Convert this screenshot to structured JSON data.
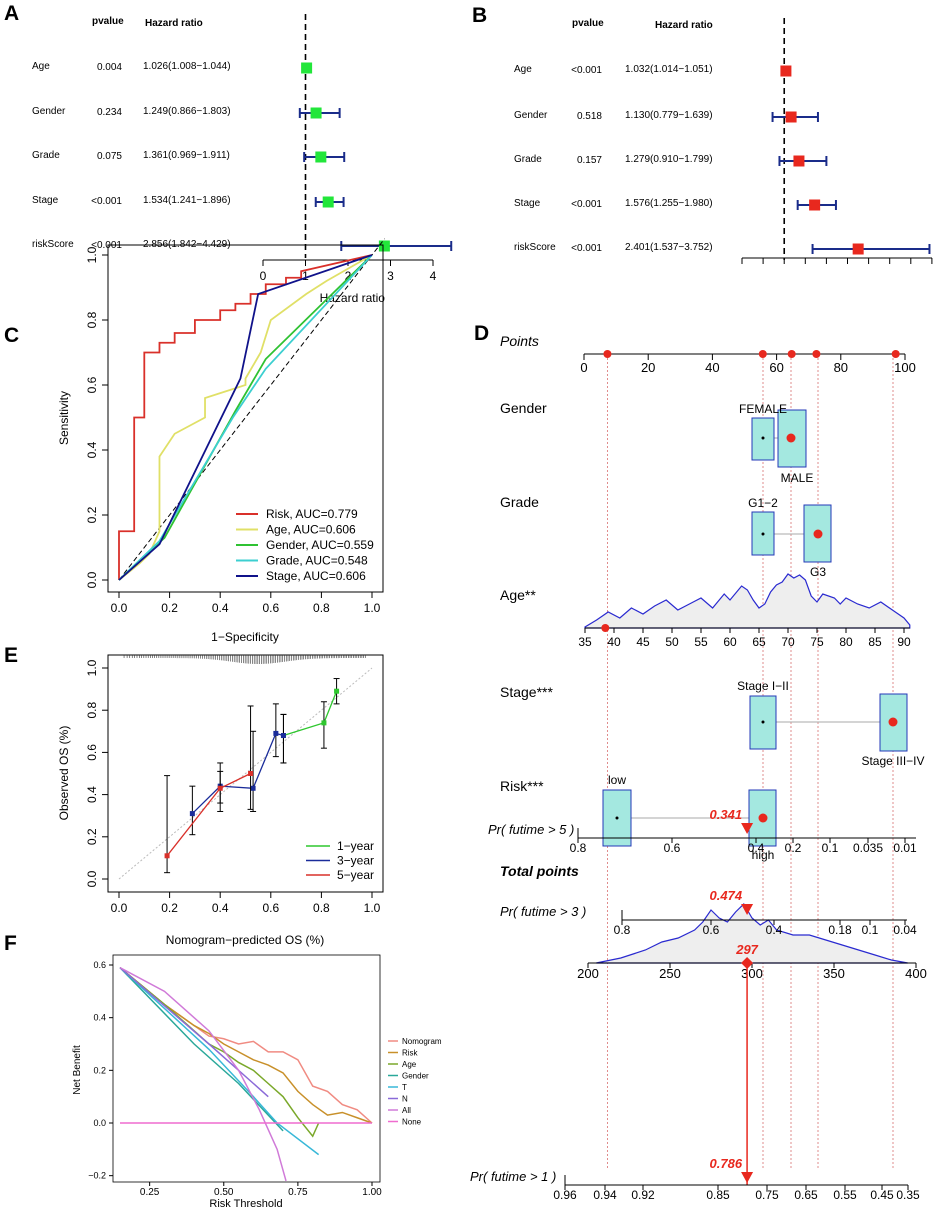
{
  "panels": {
    "a": "A",
    "b": "B",
    "c": "C",
    "d": "D",
    "e": "E",
    "f": "F"
  },
  "forest_header": {
    "pvalue": "pvalue",
    "hr": "Hazard ratio"
  },
  "chart_data": [
    {
      "id": "A",
      "type": "forest",
      "marker_color": "#22e63a",
      "ci_color": "#1a2c8a",
      "rows": [
        {
          "label": "Age",
          "pvalue": "0.004",
          "hr_text": "1.026(1.008−1.044)",
          "hr": 1.026,
          "lo": 1.008,
          "hi": 1.044
        },
        {
          "label": "Gender",
          "pvalue": "0.234",
          "hr_text": "1.249(0.866−1.803)",
          "hr": 1.249,
          "lo": 0.866,
          "hi": 1.803
        },
        {
          "label": "Grade",
          "pvalue": "0.075",
          "hr_text": "1.361(0.969−1.911)",
          "hr": 1.361,
          "lo": 0.969,
          "hi": 1.911
        },
        {
          "label": "Stage",
          "pvalue": "<0.001",
          "hr_text": "1.534(1.241−1.896)",
          "hr": 1.534,
          "lo": 1.241,
          "hi": 1.896
        },
        {
          "label": "riskScore",
          "pvalue": "<0.001",
          "hr_text": "2.856(1.842−4.429)",
          "hr": 2.856,
          "lo": 1.842,
          "hi": 4.429
        }
      ],
      "xlim": [
        0,
        4.4
      ],
      "xticks": [
        "0",
        "1",
        "2",
        "3",
        "4"
      ],
      "xlabel": "Hazard ratio"
    },
    {
      "id": "B",
      "type": "forest",
      "marker_color": "#e8281e",
      "ci_color": "#1a2c8a",
      "rows": [
        {
          "label": "Age",
          "pvalue": "<0.001",
          "hr_text": "1.032(1.014−1.051)",
          "hr": 1.032,
          "lo": 1.014,
          "hi": 1.051
        },
        {
          "label": "Gender",
          "pvalue": "0.518",
          "hr_text": "1.130(0.779−1.639)",
          "hr": 1.13,
          "lo": 0.779,
          "hi": 1.639
        },
        {
          "label": "Grade",
          "pvalue": "0.157",
          "hr_text": "1.279(0.910−1.799)",
          "hr": 1.279,
          "lo": 0.91,
          "hi": 1.799
        },
        {
          "label": "Stage",
          "pvalue": "<0.001",
          "hr_text": "1.576(1.255−1.980)",
          "hr": 1.576,
          "lo": 1.255,
          "hi": 1.98
        },
        {
          "label": "riskScore",
          "pvalue": "<0.001",
          "hr_text": "2.401(1.537−3.752)",
          "hr": 2.401,
          "lo": 1.537,
          "hi": 3.752
        }
      ],
      "xlim": [
        0.2,
        3.8
      ]
    },
    {
      "id": "C",
      "type": "line",
      "title": "",
      "xlabel": "1−Specificity",
      "ylabel": "Sensitivity",
      "xticks": [
        "0.0",
        "0.2",
        "0.4",
        "0.6",
        "0.8",
        "1.0"
      ],
      "yticks": [
        "0.0",
        "0.2",
        "0.4",
        "0.6",
        "0.8",
        "1.0"
      ],
      "series": [
        {
          "name": "Risk, AUC=0.779",
          "color": "#d9302a",
          "x": [
            0,
            0,
            0.02,
            0.06,
            0.06,
            0.1,
            0.1,
            0.16,
            0.16,
            0.22,
            0.22,
            0.3,
            0.3,
            0.4,
            0.4,
            0.46,
            0.46,
            0.52,
            0.52,
            0.58,
            0.58,
            0.66,
            0.66,
            0.72,
            0.72,
            1
          ],
          "y": [
            0,
            0.15,
            0.15,
            0.15,
            0.5,
            0.5,
            0.7,
            0.7,
            0.73,
            0.73,
            0.76,
            0.76,
            0.8,
            0.8,
            0.83,
            0.83,
            0.85,
            0.85,
            0.88,
            0.88,
            0.91,
            0.91,
            0.93,
            0.93,
            0.95,
            1
          ]
        },
        {
          "name": "Age, AUC=0.606",
          "color": "#e0e067",
          "x": [
            0,
            0.08,
            0.12,
            0.16,
            0.16,
            0.22,
            0.34,
            0.34,
            0.42,
            0.5,
            0.5,
            0.56,
            0.6,
            0.74,
            0.82,
            1
          ],
          "y": [
            0,
            0.05,
            0.08,
            0.15,
            0.38,
            0.45,
            0.5,
            0.56,
            0.58,
            0.6,
            0.62,
            0.7,
            0.8,
            0.88,
            0.92,
            1
          ]
        },
        {
          "name": "Gender, AUC=0.559",
          "color": "#2fc232",
          "x": [
            0,
            0.18,
            0.46,
            0.58,
            1
          ],
          "y": [
            0,
            0.13,
            0.52,
            0.68,
            1
          ]
        },
        {
          "name": "Grade, AUC=0.548",
          "color": "#3ccfd0",
          "x": [
            0,
            0.16,
            0.45,
            0.58,
            1
          ],
          "y": [
            0,
            0.12,
            0.5,
            0.65,
            1
          ]
        },
        {
          "name": "Stage, AUC=0.606",
          "color": "#10128a",
          "x": [
            0,
            0.16,
            0.48,
            0.55,
            1
          ],
          "y": [
            0,
            0.11,
            0.62,
            0.88,
            1
          ]
        }
      ]
    },
    {
      "id": "E",
      "type": "scatter",
      "xlabel": "Nomogram−predicted OS (%)",
      "ylabel": "Observed OS (%)",
      "xticks": [
        "0.0",
        "0.2",
        "0.4",
        "0.6",
        "0.8",
        "1.0"
      ],
      "yticks": [
        "0.0",
        "0.2",
        "0.4",
        "0.6",
        "0.8",
        "1.0"
      ],
      "series": [
        {
          "name": "1−year",
          "color": "#2ec72e",
          "points": [
            {
              "x": 0.65,
              "y": 0.68,
              "lo": 0.55,
              "hi": 0.78
            },
            {
              "x": 0.81,
              "y": 0.74,
              "lo": 0.62,
              "hi": 0.84
            },
            {
              "x": 0.86,
              "y": 0.89,
              "lo": 0.83,
              "hi": 0.95
            }
          ]
        },
        {
          "name": "3−year",
          "color": "#1a2c9a",
          "points": [
            {
              "x": 0.29,
              "y": 0.31,
              "lo": 0.21,
              "hi": 0.44
            },
            {
              "x": 0.4,
              "y": 0.44,
              "lo": 0.32,
              "hi": 0.55
            },
            {
              "x": 0.53,
              "y": 0.43,
              "lo": 0.32,
              "hi": 0.7
            },
            {
              "x": 0.62,
              "y": 0.69,
              "lo": 0.58,
              "hi": 0.83
            },
            {
              "x": 0.65,
              "y": 0.68,
              "lo": 0.55,
              "hi": 0.78
            }
          ]
        },
        {
          "name": "5−year",
          "color": "#d9302a",
          "points": [
            {
              "x": 0.19,
              "y": 0.11,
              "lo": 0.03,
              "hi": 0.49
            },
            {
              "x": 0.4,
              "y": 0.43,
              "lo": 0.36,
              "hi": 0.51
            },
            {
              "x": 0.52,
              "y": 0.5,
              "lo": 0.33,
              "hi": 0.82
            }
          ]
        }
      ]
    },
    {
      "id": "F",
      "type": "line",
      "xlabel": "Risk Threshold",
      "ylabel": "Net Benefit",
      "xticks": [
        "0.25",
        "0.50",
        "0.75",
        "1.00"
      ],
      "yticks": [
        "−0.2",
        "0.0",
        "0.2",
        "0.4",
        "0.6"
      ],
      "series": [
        {
          "name": "Nomogram",
          "color": "#f08b82",
          "x": [
            0.15,
            0.3,
            0.4,
            0.45,
            0.5,
            0.55,
            0.6,
            0.65,
            0.7,
            0.75,
            0.8,
            0.85,
            0.9,
            0.95,
            1.0
          ],
          "y": [
            0.59,
            0.45,
            0.37,
            0.33,
            0.32,
            0.3,
            0.31,
            0.27,
            0.27,
            0.24,
            0.14,
            0.12,
            0.07,
            0.05,
            0.0
          ]
        },
        {
          "name": "Risk",
          "color": "#c8902a",
          "x": [
            0.15,
            0.3,
            0.4,
            0.45,
            0.5,
            0.55,
            0.6,
            0.65,
            0.7,
            0.75,
            0.8,
            0.85,
            0.9,
            0.95,
            1.0
          ],
          "y": [
            0.59,
            0.45,
            0.37,
            0.34,
            0.3,
            0.27,
            0.24,
            0.22,
            0.19,
            0.12,
            0.07,
            0.03,
            0.04,
            0.02,
            0.0
          ]
        },
        {
          "name": "Age",
          "color": "#7aa82a",
          "x": [
            0.15,
            0.3,
            0.4,
            0.45,
            0.5,
            0.55,
            0.6,
            0.65,
            0.7,
            0.75,
            0.8,
            0.82
          ],
          "y": [
            0.59,
            0.45,
            0.35,
            0.3,
            0.27,
            0.23,
            0.2,
            0.15,
            0.1,
            0.02,
            -0.05,
            0.0
          ]
        },
        {
          "name": "Gender",
          "color": "#2aa89a",
          "x": [
            0.15,
            0.4,
            0.55,
            0.65,
            0.7
          ],
          "y": [
            0.59,
            0.3,
            0.15,
            0.03,
            -0.03
          ]
        },
        {
          "name": "T",
          "color": "#38b8d8",
          "x": [
            0.15,
            0.45,
            0.6,
            0.68,
            0.82
          ],
          "y": [
            0.59,
            0.28,
            0.1,
            0.0,
            -0.12
          ]
        },
        {
          "name": "N",
          "color": "#8a6ad8",
          "x": [
            0.15,
            0.45,
            0.6,
            0.65
          ],
          "y": [
            0.59,
            0.3,
            0.15,
            0.1
          ]
        },
        {
          "name": "All",
          "color": "#d07ad8",
          "x": [
            0.15,
            0.3,
            0.45,
            0.55,
            0.62,
            0.68,
            0.71
          ],
          "y": [
            0.59,
            0.5,
            0.35,
            0.2,
            0.05,
            -0.1,
            -0.22
          ]
        },
        {
          "name": "None",
          "color": "#ef6ccf",
          "x": [
            0.15,
            1.0
          ],
          "y": [
            0,
            0
          ]
        }
      ]
    },
    {
      "id": "D",
      "type": "nomogram",
      "points_label": "Points",
      "points_ticks": [
        "0",
        "20",
        "40",
        "60",
        "80",
        "100"
      ],
      "gender": {
        "label": "Gender",
        "levels": [
          "FEMALE",
          "MALE"
        ]
      },
      "grade": {
        "label": "Grade",
        "levels": [
          "G1−2",
          "G3"
        ]
      },
      "age": {
        "label": "Age**",
        "ticks": [
          "35",
          "40",
          "45",
          "50",
          "55",
          "60",
          "65",
          "70",
          "75",
          "80",
          "85",
          "90"
        ]
      },
      "stage": {
        "label": "Stage***",
        "levels": [
          "Stage I−II",
          "Stage III−IV"
        ]
      },
      "risk": {
        "label": "Risk***",
        "levels": [
          "low",
          "high"
        ]
      },
      "total": {
        "label": "Total points",
        "value": "297",
        "ticks": [
          "200",
          "250",
          "300",
          "350",
          "400"
        ]
      },
      "probs": [
        {
          "label": "Pr( futime > 5 )",
          "value": "0.341",
          "ticks": [
            "0.8",
            "0.6",
            "0.4",
            "0.2",
            "0.1",
            "0.035",
            "0.01"
          ]
        },
        {
          "label": "Pr( futime > 3 )",
          "value": "0.474",
          "ticks": [
            "0.8",
            "0.6",
            "0.4",
            "0.18",
            "0.1",
            "0.04"
          ]
        },
        {
          "label": "Pr( futime > 1 )",
          "value": "0.786",
          "ticks": [
            "0.96",
            "0.94",
            "0.92",
            "0.85",
            "0.75",
            "0.65",
            "0.55",
            "0.45",
            "0.35"
          ]
        }
      ]
    }
  ]
}
